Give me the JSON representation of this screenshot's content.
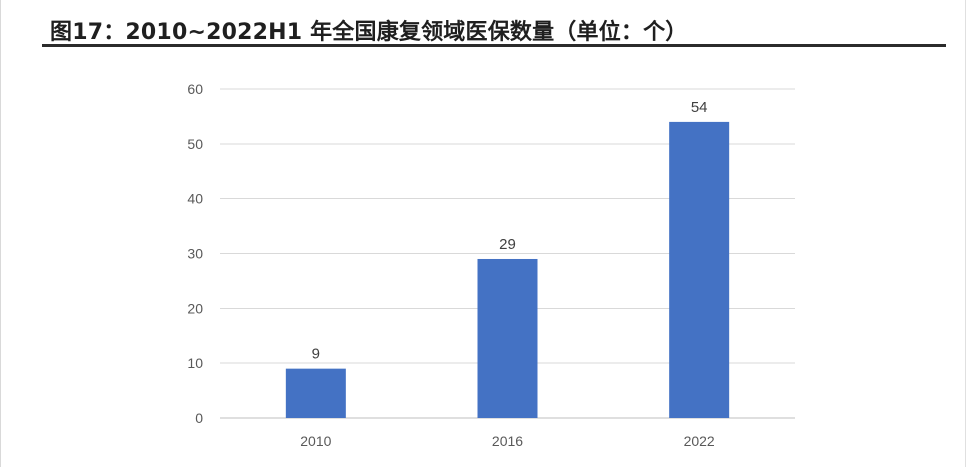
{
  "page": {
    "title": "图17：2010~2022H1 年全国康复领域医保数量（单位：个）"
  },
  "chart_data": {
    "type": "bar",
    "title": "",
    "xlabel": "",
    "ylabel": "",
    "categories": [
      "2010",
      "2016",
      "2022"
    ],
    "values": [
      9,
      29,
      54
    ],
    "data_labels": [
      "9",
      "29",
      "54"
    ],
    "ylim": [
      0,
      60
    ],
    "yticks": [
      0,
      10,
      20,
      30,
      40,
      50,
      60
    ],
    "grid": true,
    "legend": "none",
    "colors": {
      "bar": "#4472C4",
      "grid": "#d9d9d9",
      "axis": "#bfbfbf",
      "tick_text": "#595959",
      "label_text": "#404040"
    }
  }
}
